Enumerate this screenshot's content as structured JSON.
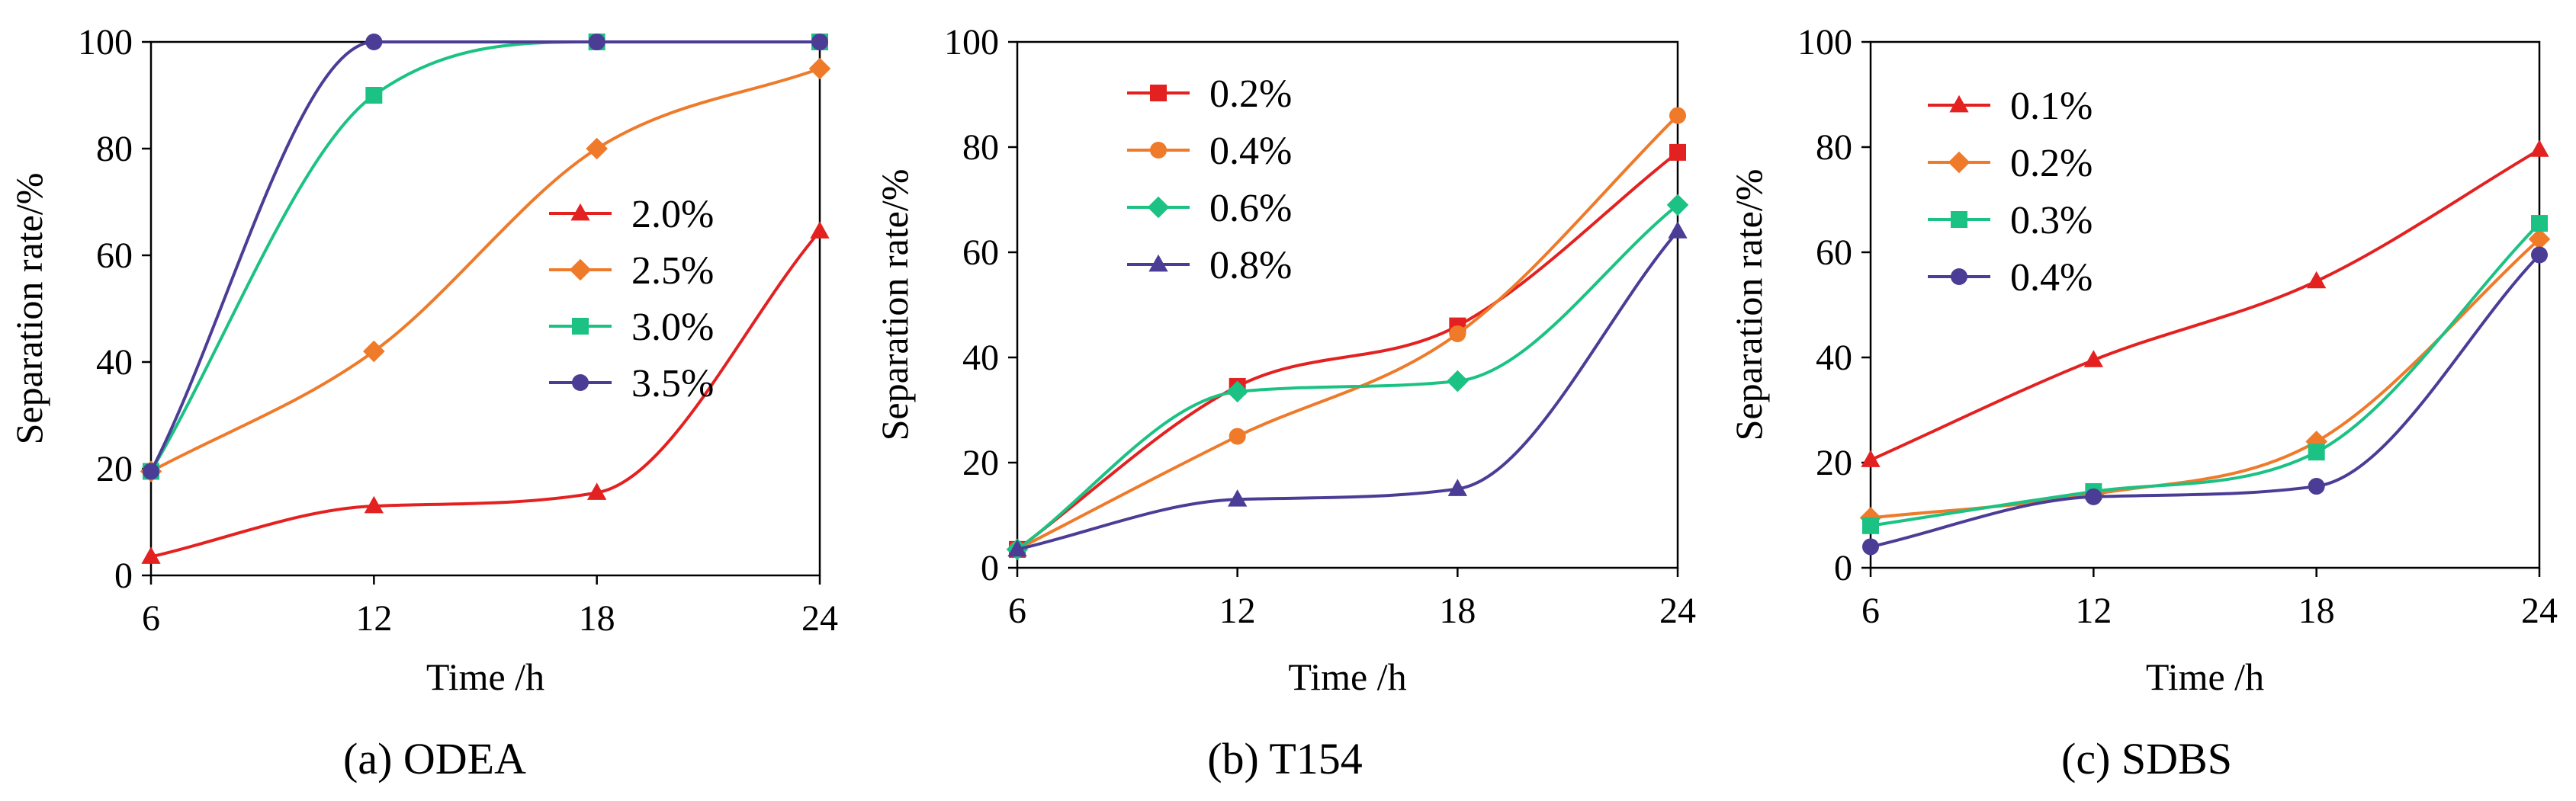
{
  "chart_data": [
    {
      "type": "line",
      "caption": "(a) ODEA",
      "xlabel": "Time /h",
      "ylabel": "Separation rate/%",
      "xlim": [
        6,
        24
      ],
      "ylim": [
        0,
        100
      ],
      "xticks": [
        6,
        12,
        18,
        24
      ],
      "yticks": [
        0,
        20,
        40,
        60,
        80,
        100
      ],
      "legend_position": "center-right",
      "series": [
        {
          "name": "2.0%",
          "marker": "triangle",
          "color": "#e32121",
          "x": [
            6,
            12,
            18,
            24
          ],
          "values": [
            3.5,
            13,
            15.5,
            64.5
          ]
        },
        {
          "name": "2.5%",
          "marker": "diamond",
          "color": "#ee7a2a",
          "x": [
            6,
            12,
            18,
            24
          ],
          "values": [
            19.5,
            42,
            80,
            95
          ]
        },
        {
          "name": "3.0%",
          "marker": "square",
          "color": "#1cc283",
          "x": [
            6,
            12,
            18,
            24
          ],
          "values": [
            19.5,
            90,
            100,
            100
          ]
        },
        {
          "name": "3.5%",
          "marker": "circle",
          "color": "#4b3d96",
          "x": [
            6,
            12,
            18,
            24
          ],
          "values": [
            19.5,
            100,
            100,
            100
          ]
        }
      ]
    },
    {
      "type": "line",
      "caption": "(b) T154",
      "xlabel": "Time /h",
      "ylabel": "Separation rate/%",
      "xlim": [
        6,
        24
      ],
      "ylim": [
        0,
        100
      ],
      "xticks": [
        6,
        12,
        18,
        24
      ],
      "yticks": [
        0,
        20,
        40,
        60,
        80,
        100
      ],
      "legend_position": "top-left",
      "series": [
        {
          "name": "0.2%",
          "marker": "square",
          "color": "#e32121",
          "x": [
            6,
            12,
            18,
            24
          ],
          "values": [
            3.5,
            34.5,
            46,
            79
          ]
        },
        {
          "name": "0.4%",
          "marker": "circle",
          "color": "#ee7a2a",
          "x": [
            6,
            12,
            18,
            24
          ],
          "values": [
            3.5,
            25,
            44.5,
            86
          ]
        },
        {
          "name": "0.6%",
          "marker": "diamond",
          "color": "#1cc283",
          "x": [
            6,
            12,
            18,
            24
          ],
          "values": [
            3.5,
            33.5,
            35.5,
            69
          ]
        },
        {
          "name": "0.8%",
          "marker": "triangle",
          "color": "#4b3d96",
          "x": [
            6,
            12,
            18,
            24
          ],
          "values": [
            3.5,
            13,
            15,
            64
          ]
        }
      ]
    },
    {
      "type": "line",
      "caption": "(c) SDBS",
      "xlabel": "Time /h",
      "ylabel": "Separation rate/%",
      "xlim": [
        6,
        24
      ],
      "ylim": [
        0,
        100
      ],
      "xticks": [
        6,
        12,
        18,
        24
      ],
      "yticks": [
        0,
        20,
        40,
        60,
        80,
        100
      ],
      "legend_position": "top-left",
      "series": [
        {
          "name": "0.1%",
          "marker": "triangle",
          "color": "#e32121",
          "x": [
            6,
            12,
            18,
            24
          ],
          "values": [
            20.5,
            39.5,
            54.5,
            79.5
          ]
        },
        {
          "name": "0.2%",
          "marker": "diamond",
          "color": "#ee7a2a",
          "x": [
            6,
            12,
            18,
            24
          ],
          "values": [
            9.5,
            14,
            24,
            62.5
          ]
        },
        {
          "name": "0.3%",
          "marker": "square",
          "color": "#1cc283",
          "x": [
            6,
            12,
            18,
            24
          ],
          "values": [
            8,
            14.5,
            22,
            65.5
          ]
        },
        {
          "name": "0.4%",
          "marker": "circle",
          "color": "#4b3d96",
          "x": [
            6,
            12,
            18,
            24
          ],
          "values": [
            4,
            13.5,
            15.5,
            59.5
          ]
        }
      ]
    }
  ]
}
